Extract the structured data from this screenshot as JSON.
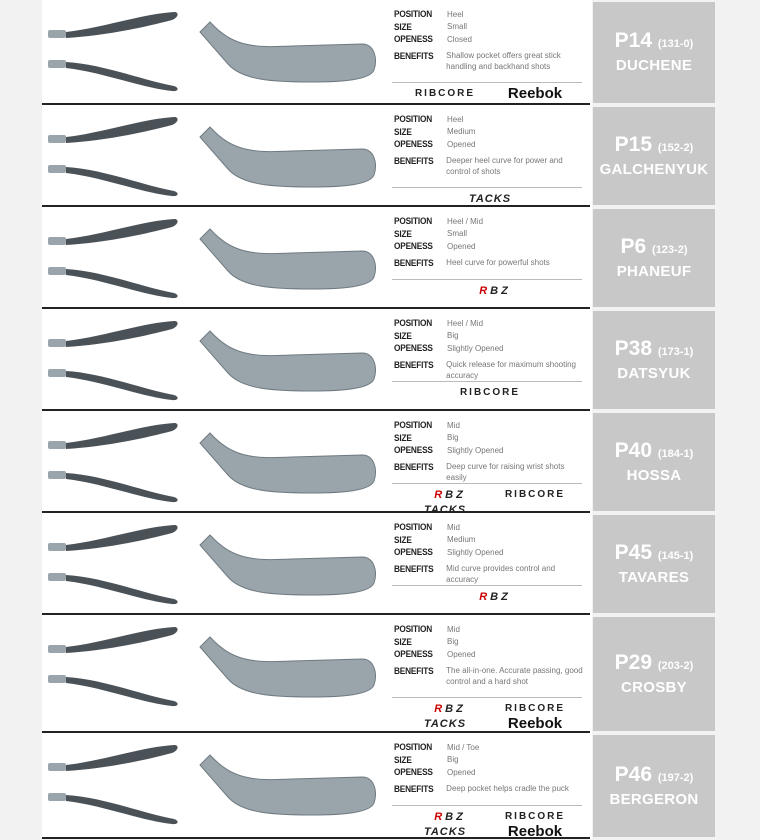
{
  "labels": {
    "position": "POSITION",
    "size": "SIZE",
    "openess": "OPENESS",
    "benefits": "BENEFITS"
  },
  "colors": {
    "card": "#c8c8c8",
    "blade": "#9aa4ab",
    "blade_dark": "#4a5258",
    "accent_rbz": "#cc0000",
    "accent_ribcore": "#b5d334",
    "accent_tacks": "#d8d000"
  },
  "curves": [
    {
      "code": "P14",
      "number": "(131-0)",
      "player": "DUCHENE",
      "position": "Heel",
      "size": "Small",
      "openess": "Closed",
      "benefits": "Shallow pocket offers great stick handling and backhand shots",
      "logos": [
        "RIBCORE",
        "Reebok"
      ]
    },
    {
      "code": "P15",
      "number": "(152-2)",
      "player": "GALCHENYUK",
      "position": "Heel",
      "size": "Medium",
      "openess": "Opened",
      "benefits": "Deeper heel curve for power and control of shots",
      "logos": [
        "TACKS"
      ]
    },
    {
      "code": "P6",
      "number": "(123-2)",
      "player": "PHANEUF",
      "position": "Heel / Mid",
      "size": "Small",
      "openess": "Opened",
      "benefits": "Heel curve for powerful shots",
      "logos": [
        "RBZ"
      ]
    },
    {
      "code": "P38",
      "number": "(173-1)",
      "player": "DATSYUK",
      "position": "Heel / Mid",
      "size": "Big",
      "openess": "Slightly Opened",
      "benefits": "Quick release for maximum shooting accuracy",
      "logos": [
        "RIBCORE"
      ]
    },
    {
      "code": "P40",
      "number": "(184-1)",
      "player": "HOSSA",
      "position": "Mid",
      "size": "Big",
      "openess": "Slightly Opened",
      "benefits": "Deep curve for raising wrist shots easily",
      "logos": [
        "RBZ",
        "RIBCORE",
        "TACKS"
      ]
    },
    {
      "code": "P45",
      "number": "(145-1)",
      "player": "TAVARES",
      "position": "Mid",
      "size": "Medium",
      "openess": "Slightly Opened",
      "benefits": "Mid curve provides control and accuracy",
      "logos": [
        "RBZ"
      ]
    },
    {
      "code": "P29",
      "number": "(203-2)",
      "player": "CROSBY",
      "position": "Mid",
      "size": "Big",
      "openess": "Opened",
      "benefits": "The all-in-one. Accurate passing, good control and a hard shot",
      "logos": [
        "RBZ",
        "RIBCORE",
        "TACKS",
        "Reebok"
      ]
    },
    {
      "code": "P46",
      "number": "(197-2)",
      "player": "BERGERON",
      "position": "Mid / Toe",
      "size": "Big",
      "openess": "Opened",
      "benefits": "Deep pocket helps cradle the puck",
      "logos": [
        "RBZ",
        "RIBCORE",
        "TACKS",
        "Reebok"
      ]
    }
  ]
}
